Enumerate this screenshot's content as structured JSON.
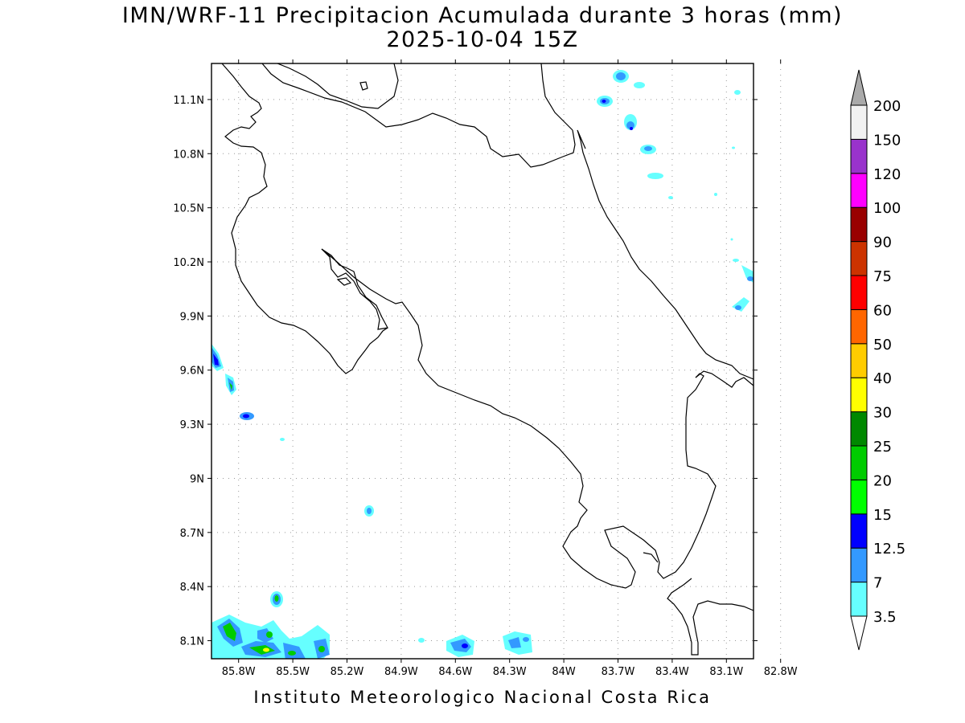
{
  "title": {
    "line1": "IMN/WRF-11 Precipitacion Acumulada durante 3 horas (mm)",
    "line2": "2025-10-04 15Z"
  },
  "footer": "Instituto Meteorologico Nacional Costa Rica",
  "map": {
    "lat_range": [
      8.0,
      11.3
    ],
    "lon_range": [
      -85.95,
      -82.95
    ],
    "grid": true,
    "lon_ticks": [
      {
        "value": -85.8,
        "label": "85.8W"
      },
      {
        "value": -85.5,
        "label": "85.5W"
      },
      {
        "value": -85.2,
        "label": "85.2W"
      },
      {
        "value": -84.9,
        "label": "84.9W"
      },
      {
        "value": -84.6,
        "label": "84.6W"
      },
      {
        "value": -84.3,
        "label": "84.3W"
      },
      {
        "value": -84.0,
        "label": "84W"
      },
      {
        "value": -83.7,
        "label": "83.7W"
      },
      {
        "value": -83.4,
        "label": "83.4W"
      },
      {
        "value": -83.1,
        "label": "83.1W"
      },
      {
        "value": -82.8,
        "label": "82.8W"
      }
    ],
    "lat_ticks": [
      {
        "value": 11.1,
        "label": "11.1N"
      },
      {
        "value": 10.8,
        "label": "10.8N"
      },
      {
        "value": 10.5,
        "label": "10.5N"
      },
      {
        "value": 10.2,
        "label": "10.2N"
      },
      {
        "value": 9.9,
        "label": "9.9N"
      },
      {
        "value": 9.6,
        "label": "9.6N"
      },
      {
        "value": 9.3,
        "label": "9.3N"
      },
      {
        "value": 9.0,
        "label": "9N"
      },
      {
        "value": 8.7,
        "label": "8.7N"
      },
      {
        "value": 8.4,
        "label": "8.4N"
      },
      {
        "value": 8.1,
        "label": "8.1N"
      }
    ]
  },
  "legend": {
    "labels": [
      "3.5",
      "7",
      "12.5",
      "15",
      "20",
      "25",
      "30",
      "40",
      "50",
      "60",
      "75",
      "90",
      "100",
      "120",
      "150",
      "200"
    ],
    "colors": [
      "#66ffff",
      "#3399ff",
      "#0000ff",
      "#00ff00",
      "#00cc00",
      "#008800",
      "#ffff00",
      "#ffcc00",
      "#ff6600",
      "#ff0000",
      "#cc3300",
      "#990000",
      "#ff00ff",
      "#9933cc",
      "#f2f2f2"
    ],
    "low_arrow_color": "#ffffff",
    "high_arrow_color": "#aaaaaa"
  }
}
